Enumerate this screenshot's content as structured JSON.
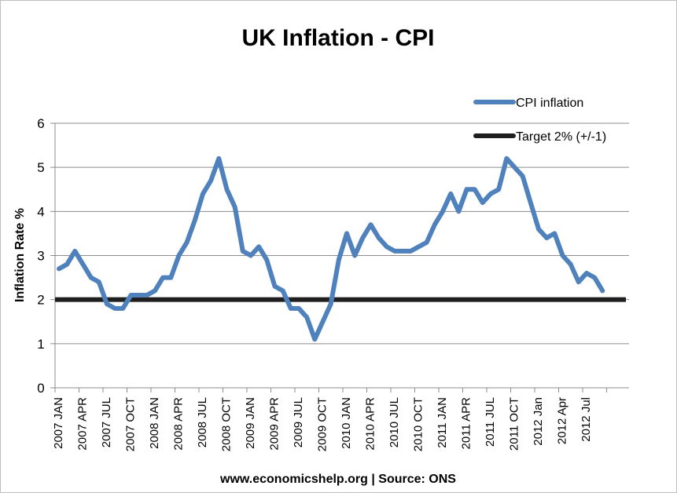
{
  "chart_data": {
    "type": "line",
    "title": "UK Inflation - CPI",
    "xlabel": "",
    "ylabel": "Inflation Rate %",
    "ylim": [
      0,
      6
    ],
    "yticks": [
      0,
      1,
      2,
      3,
      4,
      5,
      6
    ],
    "grid": true,
    "legend_position": "top-right",
    "footer": "www.economicshelp.org | Source: ONS",
    "x_tick_labels": [
      "2007 JAN",
      "2007 APR",
      "2007 JUL",
      "2007 OCT",
      "2008 JAN",
      "2008 APR",
      "2008 JUL",
      "2008 OCT",
      "2009 JAN",
      "2009 APR",
      "2009 JUL",
      "2009 OCT",
      "2010 JAN",
      "2010 APR",
      "2010 JUL",
      "2010 OCT",
      "2011 JAN",
      "2011 APR",
      "2011 JUL",
      "2011 OCT",
      "2012 Jan",
      "2012 Apr",
      "2012 Jul"
    ],
    "series": [
      {
        "name": "CPI inflation",
        "color": "#4f81bd",
        "values": [
          2.7,
          2.8,
          3.1,
          2.8,
          2.5,
          2.4,
          1.9,
          1.8,
          1.8,
          2.1,
          2.1,
          2.1,
          2.2,
          2.5,
          2.5,
          3.0,
          3.3,
          3.8,
          4.4,
          4.7,
          5.2,
          4.5,
          4.1,
          3.1,
          3.0,
          3.2,
          2.9,
          2.3,
          2.2,
          1.8,
          1.8,
          1.6,
          1.1,
          1.5,
          1.9,
          2.9,
          3.5,
          3.0,
          3.4,
          3.7,
          3.4,
          3.2,
          3.1,
          3.1,
          3.1,
          3.2,
          3.3,
          3.7,
          4.0,
          4.4,
          4.0,
          4.5,
          4.5,
          4.2,
          4.4,
          4.5,
          5.2,
          5.0,
          4.8,
          4.2,
          3.6,
          3.4,
          3.5,
          3.0,
          2.8,
          2.4,
          2.6,
          2.5,
          2.2
        ]
      },
      {
        "name": "Target 2% (+/-1)",
        "color": "#1f1f1f",
        "values": [
          2,
          2,
          2,
          2,
          2,
          2,
          2,
          2,
          2,
          2,
          2,
          2,
          2,
          2,
          2,
          2,
          2,
          2,
          2,
          2,
          2,
          2,
          2,
          2,
          2,
          2,
          2,
          2,
          2,
          2,
          2,
          2,
          2,
          2,
          2,
          2,
          2,
          2,
          2,
          2,
          2,
          2,
          2,
          2,
          2,
          2,
          2,
          2,
          2,
          2,
          2,
          2,
          2,
          2,
          2,
          2,
          2,
          2,
          2,
          2,
          2,
          2,
          2,
          2,
          2,
          2,
          2,
          2,
          2
        ]
      }
    ]
  }
}
